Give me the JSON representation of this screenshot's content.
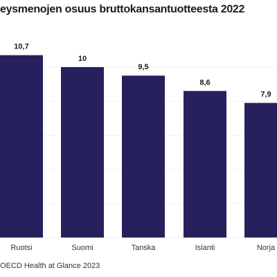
{
  "chart_data": {
    "type": "bar",
    "title": "eysmenojen osuus bruttokansantuotteesta 2022",
    "categories": [
      "Ruotsi",
      "Suomi",
      "Tanska",
      "Islanti",
      "Norja"
    ],
    "values": [
      10.7,
      10,
      9.5,
      8.6,
      7.9
    ],
    "value_labels": [
      "10,7",
      "10",
      "9,5",
      "8,6",
      "7,9"
    ],
    "ylim": [
      0,
      11.5
    ],
    "grid": true,
    "legend": "none",
    "xlabel": "",
    "ylabel": "",
    "source": "OECD Health at Glance 2023",
    "colors": {
      "bar": "#26215c",
      "grid": "#e4e4e4",
      "text": "#222222"
    }
  }
}
